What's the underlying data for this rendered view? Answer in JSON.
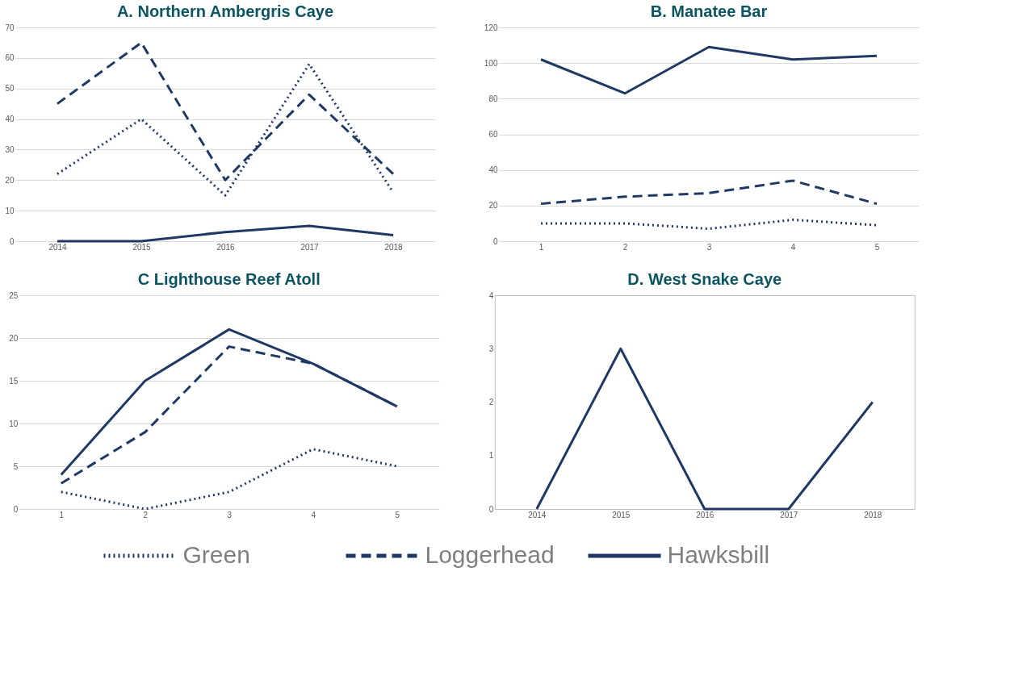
{
  "chart_data": [
    {
      "type": "line",
      "title": "A. Northern Ambergris Caye",
      "categories": [
        "2014",
        "2015",
        "2016",
        "2017",
        "2018"
      ],
      "ylim": [
        0,
        70
      ],
      "yticks": [
        0,
        10,
        20,
        30,
        40,
        50,
        60,
        70
      ],
      "grid": "y",
      "legend": "bottom",
      "series": [
        {
          "name": "Green",
          "color": "#203864",
          "line_style": "dotted",
          "values": [
            22,
            40,
            15,
            58,
            16
          ]
        },
        {
          "name": "Loggerhead",
          "color": "#203864",
          "line_style": "dashed",
          "values": [
            45,
            65,
            20,
            48,
            22
          ]
        },
        {
          "name": "Hawksbill",
          "color": "#203864",
          "line_style": "solid",
          "values": [
            0,
            0,
            3,
            5,
            2
          ]
        }
      ]
    },
    {
      "type": "line",
      "title": "B. Manatee Bar",
      "categories": [
        "1",
        "2",
        "3",
        "4",
        "5"
      ],
      "ylim": [
        0,
        120
      ],
      "yticks": [
        0,
        20,
        40,
        60,
        80,
        100,
        120
      ],
      "grid": "y",
      "series": [
        {
          "name": "Green",
          "color": "#203864",
          "line_style": "dotted",
          "values": [
            10,
            10,
            7,
            12,
            9
          ]
        },
        {
          "name": "Loggerhead",
          "color": "#203864",
          "line_style": "dashed",
          "values": [
            21,
            25,
            27,
            34,
            21
          ]
        },
        {
          "name": "Hawksbill",
          "color": "#203864",
          "line_style": "solid",
          "values": [
            102,
            83,
            109,
            102,
            104
          ]
        }
      ]
    },
    {
      "type": "line",
      "title": "C Lighthouse Reef Atoll",
      "categories": [
        "1",
        "2",
        "3",
        "4",
        "5"
      ],
      "ylim": [
        0,
        25
      ],
      "yticks": [
        0,
        5,
        10,
        15,
        20,
        25
      ],
      "grid": "y",
      "series": [
        {
          "name": "Green",
          "color": "#203864",
          "line_style": "dotted",
          "values": [
            2,
            0,
            2,
            7,
            5
          ]
        },
        {
          "name": "Loggerhead",
          "color": "#203864",
          "line_style": "dashed",
          "values": [
            3,
            9,
            19,
            17,
            12
          ]
        },
        {
          "name": "Hawksbill",
          "color": "#203864",
          "line_style": "solid",
          "values": [
            4,
            15,
            21,
            17,
            12
          ]
        }
      ]
    },
    {
      "type": "line",
      "title": "D. West Snake Caye",
      "categories": [
        "2014",
        "2015",
        "2016",
        "2017",
        "2018"
      ],
      "ylim": [
        0,
        4
      ],
      "yticks": [
        0,
        1,
        2,
        3,
        4
      ],
      "grid": false,
      "series": [
        {
          "name": "Hawksbill",
          "color": "#203864",
          "line_style": "solid",
          "values": [
            0,
            3,
            0,
            0,
            2
          ]
        }
      ]
    }
  ]
}
